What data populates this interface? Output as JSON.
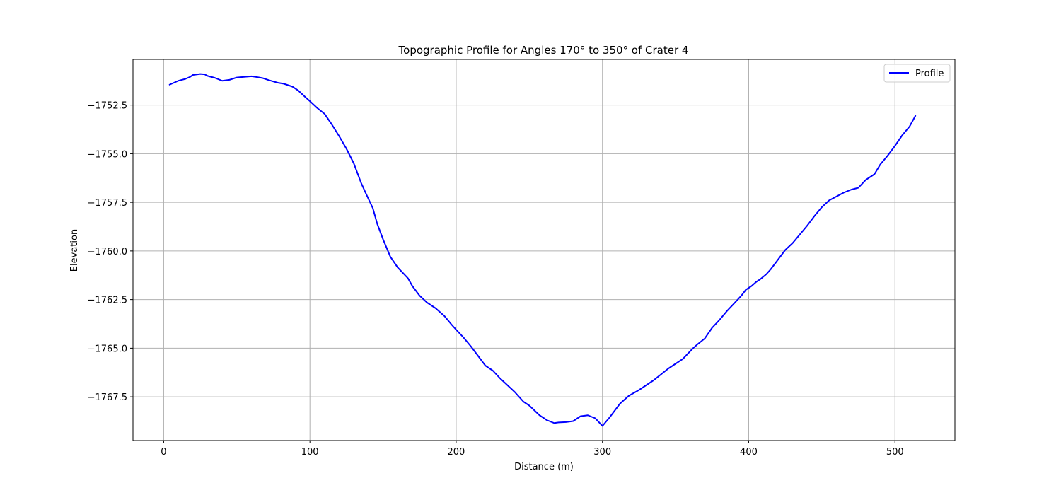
{
  "chart_data": {
    "type": "line",
    "title": "Topographic Profile for Angles 170° to 350° of Crater 4",
    "xlabel": "Distance (m)",
    "ylabel": "Elevation",
    "xlim": [
      -21,
      541
    ],
    "ylim": [
      -1769.75,
      -1750.15
    ],
    "xticks": [
      0,
      100,
      200,
      300,
      400,
      500
    ],
    "xtick_labels": [
      "0",
      "100",
      "200",
      "300",
      "400",
      "500"
    ],
    "yticks": [
      -1752.5,
      -1755.0,
      -1757.5,
      -1760.0,
      -1762.5,
      -1765.0,
      -1767.5
    ],
    "ytick_labels": [
      "−1752.5",
      "−1755.0",
      "−1757.5",
      "−1760.0",
      "−1762.5",
      "−1765.0",
      "−1767.5"
    ],
    "grid": true,
    "legend_position": "top-right",
    "series": [
      {
        "name": "Profile",
        "color": "#0000ff",
        "x": [
          4,
          10,
          15,
          18,
          20,
          25,
          28,
          30,
          35,
          40,
          45,
          50,
          55,
          60,
          63,
          68,
          72,
          78,
          82,
          88,
          92,
          97,
          100,
          105,
          110,
          115,
          120,
          125,
          130,
          135,
          138,
          143,
          146,
          150,
          155,
          160,
          167,
          170,
          175,
          180,
          186,
          192,
          197,
          200,
          205,
          210,
          215,
          220,
          225,
          230,
          235,
          240,
          246,
          250,
          257,
          262,
          267,
          270,
          275,
          280,
          285,
          290,
          295,
          300,
          305,
          312,
          318,
          325,
          330,
          335,
          340,
          345,
          350,
          355,
          362,
          365,
          370,
          375,
          380,
          385,
          390,
          395,
          398,
          402,
          405,
          408,
          412,
          415,
          420,
          425,
          430,
          435,
          440,
          445,
          450,
          455,
          460,
          465,
          470,
          475,
          480,
          486,
          490,
          495,
          500,
          505,
          510,
          514
        ],
        "y": [
          -1751.45,
          -1751.25,
          -1751.15,
          -1751.05,
          -1750.95,
          -1750.9,
          -1750.92,
          -1751.0,
          -1751.1,
          -1751.25,
          -1751.2,
          -1751.08,
          -1751.05,
          -1751.02,
          -1751.05,
          -1751.12,
          -1751.22,
          -1751.35,
          -1751.4,
          -1751.55,
          -1751.75,
          -1752.1,
          -1752.3,
          -1752.65,
          -1752.95,
          -1753.5,
          -1754.1,
          -1754.75,
          -1755.5,
          -1756.5,
          -1757.0,
          -1757.8,
          -1758.6,
          -1759.4,
          -1760.3,
          -1760.85,
          -1761.4,
          -1761.8,
          -1762.3,
          -1762.65,
          -1762.95,
          -1763.35,
          -1763.8,
          -1764.05,
          -1764.45,
          -1764.9,
          -1765.4,
          -1765.9,
          -1766.15,
          -1766.55,
          -1766.9,
          -1767.25,
          -1767.75,
          -1767.95,
          -1768.45,
          -1768.7,
          -1768.85,
          -1768.82,
          -1768.8,
          -1768.75,
          -1768.5,
          -1768.45,
          -1768.6,
          -1769.0,
          -1768.55,
          -1767.85,
          -1767.45,
          -1767.15,
          -1766.9,
          -1766.65,
          -1766.35,
          -1766.05,
          -1765.8,
          -1765.55,
          -1765.0,
          -1764.8,
          -1764.5,
          -1763.95,
          -1763.55,
          -1763.1,
          -1762.7,
          -1762.3,
          -1762.0,
          -1761.8,
          -1761.6,
          -1761.45,
          -1761.2,
          -1760.95,
          -1760.45,
          -1759.95,
          -1759.6,
          -1759.15,
          -1758.7,
          -1758.2,
          -1757.75,
          -1757.4,
          -1757.2,
          -1757.0,
          -1756.85,
          -1756.75,
          -1756.35,
          -1756.05,
          -1755.55,
          -1755.1,
          -1754.6,
          -1754.05,
          -1753.6,
          -1753.05
        ]
      }
    ]
  }
}
